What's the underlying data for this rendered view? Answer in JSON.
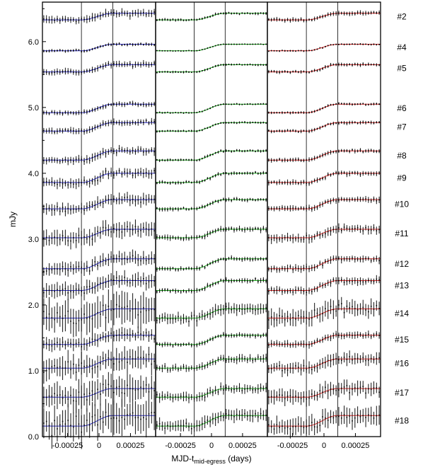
{
  "chart_data": {
    "type": "line",
    "ylabel": "mJy",
    "xlabel_main": "MJD-t",
    "xlabel_sub": "mid-egress",
    "xlabel_unit": " (days)",
    "ylim": [
      0.0,
      6.6
    ],
    "y_ticks": [
      0.0,
      1.0,
      2.0,
      3.0,
      4.0,
      5.0,
      6.0
    ],
    "y_tick_labels": [
      "0.0",
      "1.0",
      "2.0",
      "3.0",
      "4.0",
      "5.0",
      "6.0"
    ],
    "xlim": [
      -0.00045,
      0.00045
    ],
    "x_ticks": [
      -0.00025,
      0,
      0.00025
    ],
    "x_tick_labels": [
      "-0.00025",
      "0",
      "0.00025"
    ],
    "egress_markers": [
      -0.00014,
      0.00011
    ],
    "panel_colors": [
      "#2a2ac8",
      "#19b019",
      "#e02020"
    ],
    "panels": [
      {
        "name": "left",
        "model_color": "#2a2ac8"
      },
      {
        "name": "middle",
        "model_color": "#19b019"
      },
      {
        "name": "right",
        "model_color": "#e02020"
      }
    ],
    "series": [
      {
        "name": "#2",
        "baseline": 6.33,
        "step": 0.1,
        "noise": 0.05
      },
      {
        "name": "#4",
        "baseline": 5.86,
        "step": 0.1,
        "noise": 0.02
      },
      {
        "name": "#5",
        "baseline": 5.54,
        "step": 0.11,
        "noise": 0.04
      },
      {
        "name": "#6",
        "baseline": 4.92,
        "step": 0.13,
        "noise": 0.03
      },
      {
        "name": "#7",
        "baseline": 4.64,
        "step": 0.13,
        "noise": 0.04
      },
      {
        "name": "#8",
        "baseline": 4.2,
        "step": 0.14,
        "noise": 0.05
      },
      {
        "name": "#9",
        "baseline": 3.86,
        "step": 0.14,
        "noise": 0.06
      },
      {
        "name": "#10",
        "baseline": 3.46,
        "step": 0.14,
        "noise": 0.07
      },
      {
        "name": "#11",
        "baseline": 3.02,
        "step": 0.13,
        "noise": 0.1
      },
      {
        "name": "#12",
        "baseline": 2.55,
        "step": 0.15,
        "noise": 0.08
      },
      {
        "name": "#13",
        "baseline": 2.22,
        "step": 0.15,
        "noise": 0.09
      },
      {
        "name": "#14",
        "baseline": 1.8,
        "step": 0.14,
        "noise": 0.2
      },
      {
        "name": "#15",
        "baseline": 1.4,
        "step": 0.14,
        "noise": 0.08
      },
      {
        "name": "#16",
        "baseline": 1.04,
        "step": 0.14,
        "noise": 0.14
      },
      {
        "name": "#17",
        "baseline": 0.6,
        "step": 0.13,
        "noise": 0.17
      },
      {
        "name": "#18",
        "baseline": 0.16,
        "step": 0.16,
        "noise": 0.22
      }
    ]
  }
}
